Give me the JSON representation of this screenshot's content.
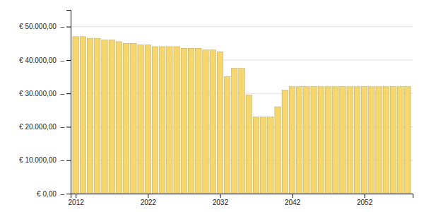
{
  "chart_data": {
    "type": "bar",
    "x": [
      2012,
      2013,
      2014,
      2015,
      2016,
      2017,
      2018,
      2019,
      2020,
      2021,
      2022,
      2023,
      2024,
      2025,
      2026,
      2027,
      2028,
      2029,
      2030,
      2031,
      2032,
      2033,
      2034,
      2035,
      2036,
      2037,
      2038,
      2039,
      2040,
      2041,
      2042,
      2043,
      2044,
      2045,
      2046,
      2047,
      2048,
      2049,
      2050,
      2051,
      2052,
      2053,
      2054,
      2055,
      2056,
      2057,
      2058
    ],
    "values": [
      47000,
      47000,
      46500,
      46500,
      46000,
      46000,
      45500,
      45000,
      45000,
      44500,
      44500,
      44000,
      44000,
      44000,
      44000,
      43500,
      43500,
      43500,
      43000,
      43000,
      42500,
      35000,
      37500,
      37500,
      29500,
      23000,
      23000,
      23000,
      26000,
      31000,
      32000,
      32000,
      32000,
      32000,
      32000,
      32000,
      32000,
      32000,
      32000,
      32000,
      32000,
      32000,
      32000,
      32000,
      32000,
      32000,
      32000
    ],
    "color": "#F5D76E",
    "xlim": [
      2011.3,
      2058.7
    ],
    "xticks": [
      2012,
      2022,
      2032,
      2042,
      2052
    ],
    "ylim": [
      0,
      55000
    ],
    "yticks": [
      {
        "value": 0,
        "label": "€ 0,00  –"
      },
      {
        "value": 10000,
        "label": "€ 10.000,00  –"
      },
      {
        "value": 20000,
        "label": "€ 20.000,00  –"
      },
      {
        "value": 30000,
        "label": "€ 30.000,00  –"
      },
      {
        "value": 40000,
        "label": "€ 40.000,00  –"
      },
      {
        "value": 50000,
        "label": "€ 50.000,00  –"
      }
    ],
    "grid": true
  }
}
